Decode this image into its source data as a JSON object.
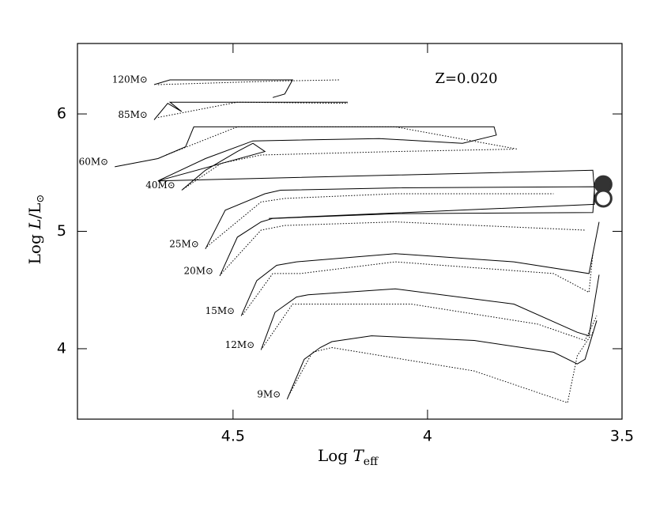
{
  "chart_data": {
    "type": "line",
    "annotation": "Z=0.020",
    "xlabel": {
      "main": "Log ",
      "italic": "T",
      "sub": "eff"
    },
    "ylabel": {
      "main": "Log ",
      "italic": "L",
      "rest": "/L",
      "sub": "⊙"
    },
    "xlim": [
      4.9,
      3.5
    ],
    "xticks": [
      4.5,
      4,
      3.5
    ],
    "ylim": [
      3.4,
      6.6
    ],
    "yticks": [
      6,
      5,
      4
    ],
    "color": "#000000",
    "series": [
      {
        "name": "120M⊙",
        "solid": {
          "x": [
            4.703,
            4.662,
            4.347,
            4.367,
            4.398
          ],
          "y": [
            6.25,
            6.29,
            6.29,
            6.17,
            6.14
          ]
        },
        "dotted": {
          "x": [
            4.693,
            4.388,
            4.225
          ],
          "y": [
            6.25,
            6.28,
            6.29
          ]
        }
      },
      {
        "name": "85M⊙",
        "solid": {
          "x": [
            4.703,
            4.668,
            4.632,
            4.662,
            4.205
          ],
          "y": [
            5.95,
            6.09,
            6.02,
            6.1,
            6.1
          ]
        },
        "dotted": {
          "x": [
            4.693,
            4.489,
            4.205
          ],
          "y": [
            5.97,
            6.1,
            6.09
          ]
        }
      },
      {
        "name": "60M⊙",
        "solid": {
          "x": [
            4.804,
            4.693,
            4.622,
            4.601,
            3.829,
            3.823,
            3.91,
            4.124,
            4.449,
            4.571,
            4.693
          ],
          "y": [
            5.55,
            5.62,
            5.72,
            5.89,
            5.89,
            5.82,
            5.75,
            5.79,
            5.77,
            5.62,
            5.43
          ]
        },
        "dotted": {
          "x": [
            4.672,
            4.489,
            4.083,
            3.768
          ],
          "y": [
            5.65,
            5.89,
            5.89,
            5.7
          ]
        }
      },
      {
        "name": "40M⊙",
        "solid": {
          "x": [
            4.632,
            4.571,
            4.489,
            4.449,
            4.418,
            4.693,
            3.575,
            3.571
          ],
          "y": [
            5.35,
            5.52,
            5.68,
            5.75,
            5.68,
            5.43,
            5.52,
            5.35
          ]
        },
        "dotted": {
          "x": [
            4.628,
            4.53,
            4.428,
            4.083,
            3.778
          ],
          "y": [
            5.36,
            5.58,
            5.65,
            5.68,
            5.7
          ]
        }
      },
      {
        "name": "25M⊙",
        "solid": {
          "x": [
            4.571,
            4.52,
            4.418,
            4.378,
            4.083,
            3.571,
            3.571,
            4.408
          ],
          "y": [
            4.85,
            5.18,
            5.32,
            5.35,
            5.37,
            5.38,
            5.23,
            5.11
          ]
        },
        "dotted": {
          "x": [
            4.567,
            4.428,
            4.367,
            4.083,
            3.676
          ],
          "y": [
            4.87,
            5.25,
            5.28,
            5.32,
            5.32
          ]
        }
      },
      {
        "name": "20M⊙",
        "solid": {
          "x": [
            4.534,
            4.489,
            4.428,
            4.398,
            4.083,
            3.575,
            3.571
          ],
          "y": [
            4.62,
            4.95,
            5.08,
            5.11,
            5.15,
            5.16,
            5.36
          ]
        },
        "dotted": {
          "x": [
            4.53,
            4.428,
            4.367,
            4.083,
            3.595
          ],
          "y": [
            4.64,
            5.01,
            5.05,
            5.08,
            5.01
          ]
        }
      },
      {
        "name": "15M⊙",
        "solid": {
          "x": [
            4.479,
            4.439,
            4.388,
            4.337,
            4.083,
            3.778,
            3.585,
            3.559
          ],
          "y": [
            4.28,
            4.58,
            4.71,
            4.74,
            4.81,
            4.74,
            4.64,
            5.08
          ]
        },
        "dotted": {
          "x": [
            4.475,
            4.398,
            4.327,
            4.083,
            3.676,
            3.585,
            3.575
          ],
          "y": [
            4.29,
            4.64,
            4.64,
            4.74,
            4.64,
            4.48,
            4.81
          ]
        }
      },
      {
        "name": "12M⊙",
        "solid": {
          "x": [
            4.428,
            4.392,
            4.337,
            4.307,
            4.083,
            3.778,
            3.615,
            3.585,
            3.559
          ],
          "y": [
            3.99,
            4.31,
            4.44,
            4.46,
            4.51,
            4.38,
            4.14,
            4.11,
            4.63
          ]
        },
        "dotted": {
          "x": [
            4.424,
            4.347,
            4.296,
            4.042,
            3.717,
            3.595,
            3.565
          ],
          "y": [
            4.01,
            4.38,
            4.38,
            4.38,
            4.21,
            4.07,
            4.28
          ]
        }
      },
      {
        "name": "9M⊙",
        "solid": {
          "x": [
            4.361,
            4.317,
            4.276,
            4.246,
            4.144,
            3.88,
            3.676,
            3.615,
            3.595,
            3.565
          ],
          "y": [
            3.57,
            3.91,
            4.01,
            4.06,
            4.11,
            4.07,
            3.97,
            3.87,
            3.91,
            4.24
          ]
        },
        "dotted": {
          "x": [
            4.357,
            4.296,
            4.246,
            3.88,
            3.64,
            3.615,
            3.575
          ],
          "y": [
            3.6,
            3.97,
            4.01,
            3.81,
            3.54,
            3.94,
            4.14
          ]
        }
      }
    ],
    "markers": {
      "x": [
        3.548,
        3.548
      ],
      "y": [
        5.4,
        5.28
      ],
      "filled": [
        true,
        false
      ]
    }
  }
}
